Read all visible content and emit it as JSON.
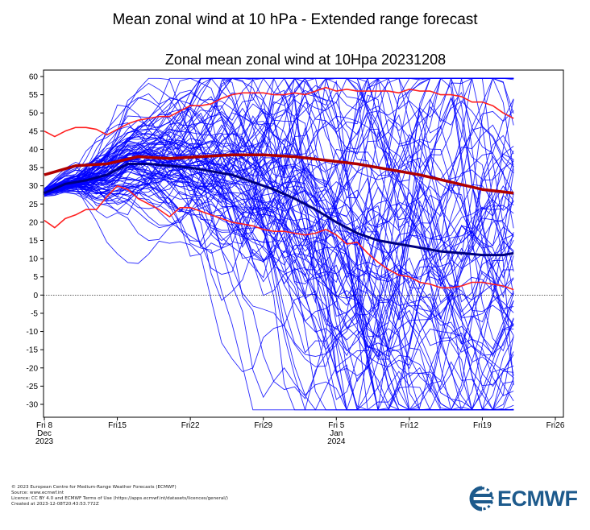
{
  "header": {
    "title": "Mean zonal wind at 10 hPa - Extended range forecast"
  },
  "chart_data": {
    "type": "line",
    "title": "Zonal mean zonal wind at 10Hpa 20231208",
    "ylim": [
      -35,
      62
    ],
    "yticks": [
      60,
      55,
      50,
      45,
      40,
      35,
      30,
      25,
      20,
      15,
      10,
      5,
      0,
      -5,
      -10,
      -15,
      -20,
      -25,
      -30
    ],
    "xlim_days": [
      0,
      51
    ],
    "xticks": [
      {
        "day": 0,
        "lines": [
          "Fri 8",
          "Dec",
          "2023"
        ]
      },
      {
        "day": 7,
        "lines": [
          "Fri15"
        ]
      },
      {
        "day": 14,
        "lines": [
          "Fri22"
        ]
      },
      {
        "day": 21,
        "lines": [
          "Fri29"
        ]
      },
      {
        "day": 28,
        "lines": [
          "Fri 5",
          "Jan",
          "2024"
        ]
      },
      {
        "day": 35,
        "lines": [
          "Fri12"
        ]
      },
      {
        "day": 42,
        "lines": [
          "Fri19"
        ]
      },
      {
        "day": 49,
        "lines": [
          "Fri26"
        ]
      }
    ],
    "zero_line": true,
    "climatology_max": {
      "x": [
        0,
        1,
        2,
        3,
        4,
        5,
        6,
        7,
        8,
        9,
        10,
        11,
        12,
        13,
        14,
        15,
        16,
        17,
        18,
        19,
        20,
        21,
        22,
        23,
        24,
        25,
        26,
        27,
        28,
        29,
        30,
        31,
        32,
        33,
        34,
        35,
        36,
        37,
        38,
        39,
        40,
        41,
        42,
        43,
        44,
        45
      ],
      "y": [
        45,
        43.5,
        45,
        46,
        46,
        45.5,
        44,
        45.5,
        47,
        48,
        48.5,
        49,
        49,
        50.5,
        52,
        52,
        52.5,
        54,
        55,
        55.5,
        55.5,
        55.5,
        55,
        55,
        55.5,
        55,
        56,
        57,
        56,
        56.5,
        56,
        56,
        56,
        56,
        55.5,
        56.5,
        56,
        56,
        55,
        55,
        54.5,
        53,
        53,
        52,
        50,
        48.5
      ]
    },
    "climatology_min": {
      "x": [
        0,
        1,
        2,
        3,
        4,
        5,
        6,
        7,
        8,
        9,
        10,
        11,
        12,
        13,
        14,
        15,
        16,
        17,
        18,
        19,
        20,
        21,
        22,
        23,
        24,
        25,
        26,
        27,
        28,
        29,
        30,
        31,
        32,
        33,
        34,
        35,
        36,
        37,
        38,
        39,
        40,
        41,
        42,
        43,
        44,
        45
      ],
      "y": [
        20.5,
        18.5,
        21,
        22,
        23.5,
        23.5,
        27,
        30,
        29,
        26.5,
        25,
        23.5,
        21.5,
        24,
        24,
        23,
        22,
        21,
        20,
        19.5,
        19,
        18,
        17.5,
        17.5,
        17,
        16.5,
        17,
        18,
        16.5,
        14,
        14.5,
        11.5,
        9,
        7,
        5.5,
        5,
        3.5,
        3,
        2,
        2,
        2.5,
        3.5,
        3.5,
        3,
        2.5,
        1.5
      ]
    },
    "climatology_mean": {
      "x": [
        0,
        3,
        6,
        9,
        12,
        15,
        18,
        21,
        24,
        27,
        30,
        33,
        36,
        39,
        42,
        45
      ],
      "y": [
        33,
        35.5,
        36,
        38,
        37.5,
        38,
        38.5,
        38.5,
        38,
        37,
        36,
        34.5,
        33,
        31,
        29,
        28
      ]
    },
    "ensemble_mean": {
      "x": [
        0,
        2,
        4,
        6,
        8,
        10,
        12,
        14,
        16,
        18,
        20,
        22,
        24,
        26,
        28,
        30,
        32,
        34,
        36,
        38,
        40,
        42,
        44,
        45
      ],
      "y": [
        28,
        30.5,
        31.5,
        33,
        36,
        36,
        35.5,
        35,
        34,
        33,
        31,
        29,
        26.5,
        23.5,
        20,
        17,
        15,
        14,
        13,
        12,
        11.5,
        11,
        11,
        11.5
      ]
    },
    "ensemble_members_count": 101
  },
  "footer": {
    "lines": [
      "© 2023 European Centre for Medium-Range Weather Forecasts (ECMWF)",
      "Source: www.ecmwf.int",
      "Licence: CC BY 4.0 and ECMWF Terms of Use (https://apps.ecmwf.int/datasets/licences/general/)",
      "Created at 2023-12-08T20:43:53.772Z"
    ]
  },
  "logo": {
    "text": "ECMWF",
    "color": "#1d5a8c"
  },
  "colors": {
    "ensemble": "#0000ff",
    "climatology_mean": "#b00000",
    "climatology_extreme": "#ff2020",
    "ensemble_mean": "#000080"
  }
}
